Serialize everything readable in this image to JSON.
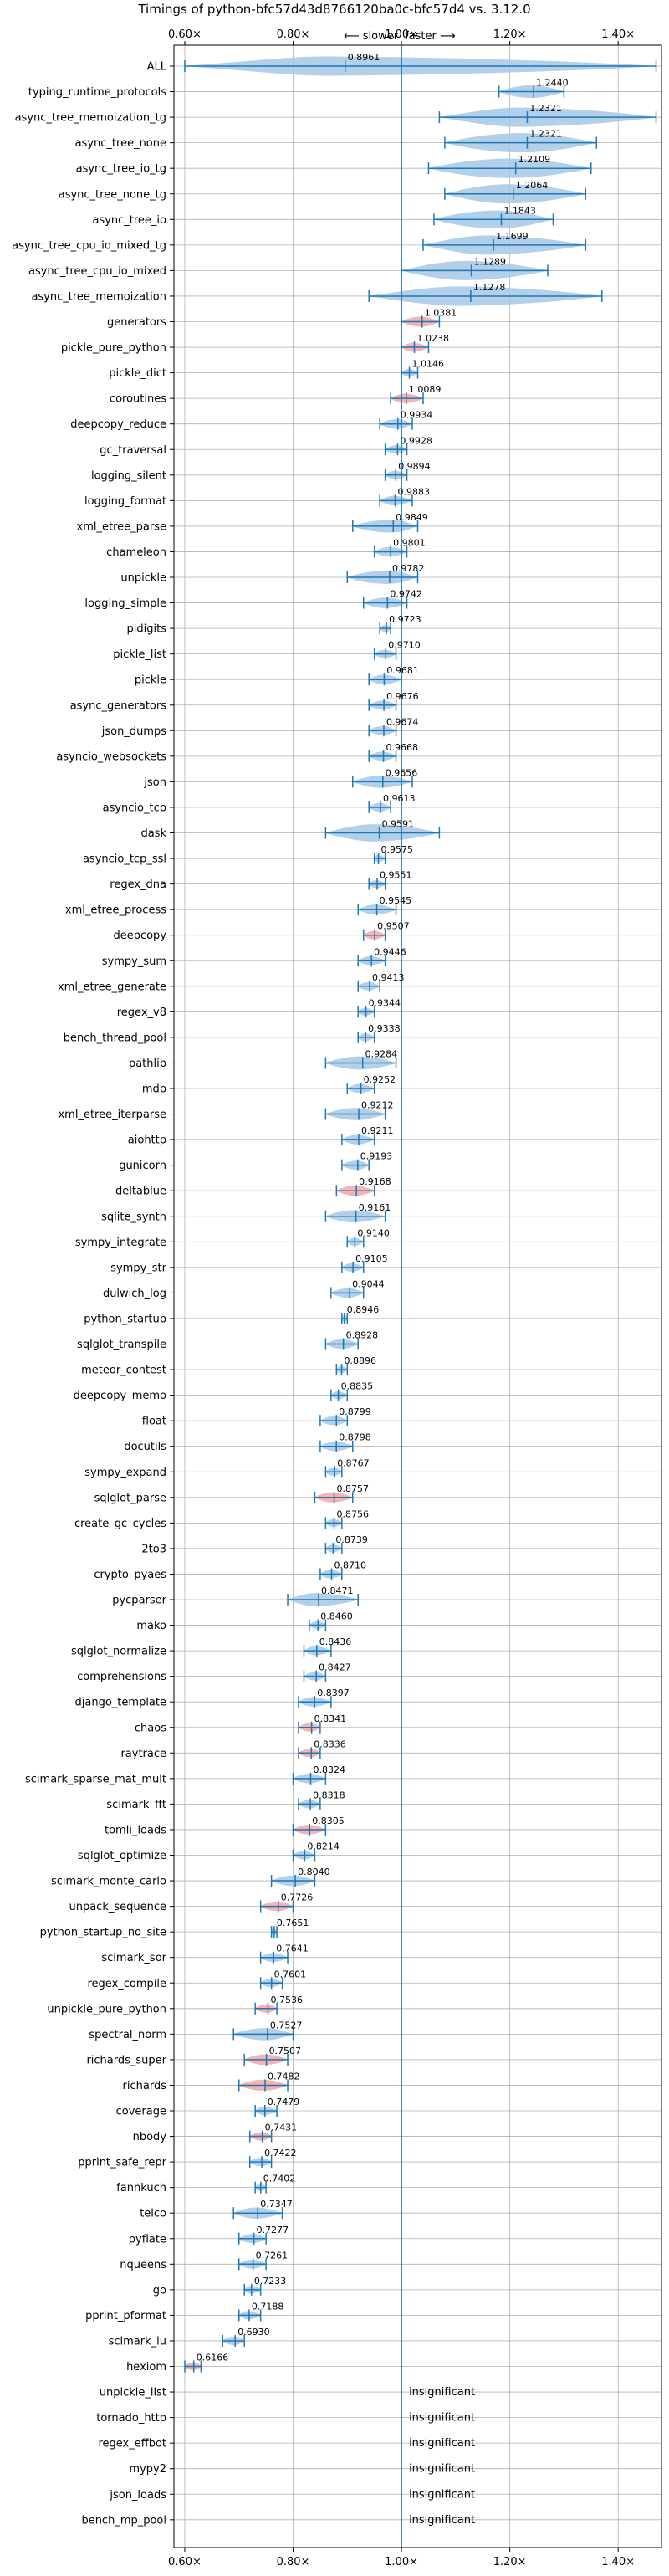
{
  "chart_data": {
    "type": "violin",
    "title": "Timings of python-bfc57d43d8766120ba0c-bfc57d4 vs. 3.12.0",
    "direction_labels": {
      "slower": "⟵ slower",
      "faster": "faster ⟶"
    },
    "xlim": [
      0.58,
      1.48
    ],
    "x_ticks": [
      0.6,
      0.8,
      1.0,
      1.2,
      1.4
    ],
    "x_tick_labels": [
      "0.60×",
      "0.80×",
      "1.00×",
      "1.20×",
      "1.40×"
    ],
    "grid": true,
    "colors": {
      "violin": "#a6c8e6",
      "violin_highlight": "#f4a6a6",
      "bar": "#1f77b4",
      "ref_line": "#1f77b4",
      "grid": "#b0b0b0"
    },
    "insignificant_label": "insignificant",
    "benchmarks": [
      {
        "name": "ALL",
        "mean": 0.8961,
        "min": 0.6,
        "max": 1.47,
        "label": "0.8961"
      },
      {
        "name": "typing_runtime_protocols",
        "mean": 1.244,
        "min": 1.18,
        "max": 1.3,
        "label": "1.2440"
      },
      {
        "name": "async_tree_memoization_tg",
        "mean": 1.2321,
        "min": 1.07,
        "max": 1.47,
        "label": "1.2321"
      },
      {
        "name": "async_tree_none",
        "mean": 1.2321,
        "min": 1.08,
        "max": 1.36,
        "label": "1.2321"
      },
      {
        "name": "async_tree_io_tg",
        "mean": 1.2109,
        "min": 1.05,
        "max": 1.35,
        "label": "1.2109"
      },
      {
        "name": "async_tree_none_tg",
        "mean": 1.2064,
        "min": 1.08,
        "max": 1.34,
        "label": "1.2064"
      },
      {
        "name": "async_tree_io",
        "mean": 1.1843,
        "min": 1.06,
        "max": 1.28,
        "label": "1.1843"
      },
      {
        "name": "async_tree_cpu_io_mixed_tg",
        "mean": 1.1699,
        "min": 1.04,
        "max": 1.34,
        "label": "1.1699"
      },
      {
        "name": "async_tree_cpu_io_mixed",
        "mean": 1.1289,
        "min": 1.0,
        "max": 1.27,
        "label": "1.1289"
      },
      {
        "name": "async_tree_memoization",
        "mean": 1.1278,
        "min": 0.94,
        "max": 1.37,
        "label": "1.1278"
      },
      {
        "name": "generators",
        "mean": 1.0381,
        "min": 1.0,
        "max": 1.07,
        "label": "1.0381",
        "highlight": true
      },
      {
        "name": "pickle_pure_python",
        "mean": 1.0238,
        "min": 1.0,
        "max": 1.05,
        "label": "1.0238",
        "highlight": true
      },
      {
        "name": "pickle_dict",
        "mean": 1.0146,
        "min": 1.0,
        "max": 1.03,
        "label": "1.0146"
      },
      {
        "name": "coroutines",
        "mean": 1.0089,
        "min": 0.98,
        "max": 1.04,
        "label": "1.0089",
        "highlight": true
      },
      {
        "name": "deepcopy_reduce",
        "mean": 0.9934,
        "min": 0.96,
        "max": 1.02,
        "label": "0.9934"
      },
      {
        "name": "gc_traversal",
        "mean": 0.9928,
        "min": 0.97,
        "max": 1.01,
        "label": "0.9928"
      },
      {
        "name": "logging_silent",
        "mean": 0.9894,
        "min": 0.97,
        "max": 1.01,
        "label": "0.9894"
      },
      {
        "name": "logging_format",
        "mean": 0.9883,
        "min": 0.96,
        "max": 1.02,
        "label": "0.9883"
      },
      {
        "name": "xml_etree_parse",
        "mean": 0.9849,
        "min": 0.91,
        "max": 1.03,
        "label": "0.9849"
      },
      {
        "name": "chameleon",
        "mean": 0.9801,
        "min": 0.95,
        "max": 1.01,
        "label": "0.9801"
      },
      {
        "name": "unpickle",
        "mean": 0.9782,
        "min": 0.9,
        "max": 1.03,
        "label": "0.9782"
      },
      {
        "name": "logging_simple",
        "mean": 0.9742,
        "min": 0.93,
        "max": 1.01,
        "label": "0.9742"
      },
      {
        "name": "pidigits",
        "mean": 0.9723,
        "min": 0.96,
        "max": 0.98,
        "label": "0.9723"
      },
      {
        "name": "pickle_list",
        "mean": 0.971,
        "min": 0.95,
        "max": 0.99,
        "label": "0.9710"
      },
      {
        "name": "pickle",
        "mean": 0.9681,
        "min": 0.94,
        "max": 1.0,
        "label": "0.9681"
      },
      {
        "name": "async_generators",
        "mean": 0.9676,
        "min": 0.94,
        "max": 0.99,
        "label": "0.9676"
      },
      {
        "name": "json_dumps",
        "mean": 0.9674,
        "min": 0.94,
        "max": 0.99,
        "label": "0.9674"
      },
      {
        "name": "asyncio_websockets",
        "mean": 0.9668,
        "min": 0.94,
        "max": 0.99,
        "label": "0.9668"
      },
      {
        "name": "json",
        "mean": 0.9656,
        "min": 0.91,
        "max": 1.02,
        "label": "0.9656"
      },
      {
        "name": "asyncio_tcp",
        "mean": 0.9613,
        "min": 0.94,
        "max": 0.98,
        "label": "0.9613"
      },
      {
        "name": "dask",
        "mean": 0.9591,
        "min": 0.86,
        "max": 1.07,
        "label": "0.9591"
      },
      {
        "name": "asyncio_tcp_ssl",
        "mean": 0.9575,
        "min": 0.95,
        "max": 0.97,
        "label": "0.9575"
      },
      {
        "name": "regex_dna",
        "mean": 0.9551,
        "min": 0.94,
        "max": 0.97,
        "label": "0.9551"
      },
      {
        "name": "xml_etree_process",
        "mean": 0.9545,
        "min": 0.92,
        "max": 0.99,
        "label": "0.9545"
      },
      {
        "name": "deepcopy",
        "mean": 0.9507,
        "min": 0.93,
        "max": 0.97,
        "label": "0.9507",
        "highlight": true
      },
      {
        "name": "sympy_sum",
        "mean": 0.9446,
        "min": 0.92,
        "max": 0.97,
        "label": "0.9446"
      },
      {
        "name": "xml_etree_generate",
        "mean": 0.9413,
        "min": 0.92,
        "max": 0.96,
        "label": "0.9413"
      },
      {
        "name": "regex_v8",
        "mean": 0.9344,
        "min": 0.92,
        "max": 0.95,
        "label": "0.9344"
      },
      {
        "name": "bench_thread_pool",
        "mean": 0.9338,
        "min": 0.92,
        "max": 0.95,
        "label": "0.9338"
      },
      {
        "name": "pathlib",
        "mean": 0.9284,
        "min": 0.86,
        "max": 0.99,
        "label": "0.9284"
      },
      {
        "name": "mdp",
        "mean": 0.9252,
        "min": 0.9,
        "max": 0.95,
        "label": "0.9252"
      },
      {
        "name": "xml_etree_iterparse",
        "mean": 0.9212,
        "min": 0.86,
        "max": 0.97,
        "label": "0.9212"
      },
      {
        "name": "aiohttp",
        "mean": 0.9211,
        "min": 0.89,
        "max": 0.95,
        "label": "0.9211"
      },
      {
        "name": "gunicorn",
        "mean": 0.9193,
        "min": 0.89,
        "max": 0.94,
        "label": "0.9193"
      },
      {
        "name": "deltablue",
        "mean": 0.9168,
        "min": 0.88,
        "max": 0.95,
        "label": "0.9168",
        "highlight": true
      },
      {
        "name": "sqlite_synth",
        "mean": 0.9161,
        "min": 0.86,
        "max": 0.97,
        "label": "0.9161"
      },
      {
        "name": "sympy_integrate",
        "mean": 0.914,
        "min": 0.9,
        "max": 0.93,
        "label": "0.9140"
      },
      {
        "name": "sympy_str",
        "mean": 0.9105,
        "min": 0.89,
        "max": 0.93,
        "label": "0.9105"
      },
      {
        "name": "dulwich_log",
        "mean": 0.9044,
        "min": 0.87,
        "max": 0.93,
        "label": "0.9044"
      },
      {
        "name": "python_startup",
        "mean": 0.8946,
        "min": 0.89,
        "max": 0.9,
        "label": "0.8946"
      },
      {
        "name": "sqlglot_transpile",
        "mean": 0.8928,
        "min": 0.86,
        "max": 0.92,
        "label": "0.8928"
      },
      {
        "name": "meteor_contest",
        "mean": 0.8896,
        "min": 0.88,
        "max": 0.9,
        "label": "0.8896"
      },
      {
        "name": "deepcopy_memo",
        "mean": 0.8835,
        "min": 0.87,
        "max": 0.9,
        "label": "0.8835"
      },
      {
        "name": "float",
        "mean": 0.8799,
        "min": 0.85,
        "max": 0.9,
        "label": "0.8799"
      },
      {
        "name": "docutils",
        "mean": 0.8798,
        "min": 0.85,
        "max": 0.91,
        "label": "0.8798"
      },
      {
        "name": "sympy_expand",
        "mean": 0.8767,
        "min": 0.86,
        "max": 0.89,
        "label": "0.8767"
      },
      {
        "name": "sqlglot_parse",
        "mean": 0.8757,
        "min": 0.84,
        "max": 0.91,
        "label": "0.8757",
        "highlight": true
      },
      {
        "name": "create_gc_cycles",
        "mean": 0.8756,
        "min": 0.86,
        "max": 0.89,
        "label": "0.8756"
      },
      {
        "name": "2to3",
        "mean": 0.8739,
        "min": 0.86,
        "max": 0.89,
        "label": "0.8739"
      },
      {
        "name": "crypto_pyaes",
        "mean": 0.871,
        "min": 0.85,
        "max": 0.89,
        "label": "0.8710"
      },
      {
        "name": "pycparser",
        "mean": 0.8471,
        "min": 0.79,
        "max": 0.92,
        "label": "0.8471"
      },
      {
        "name": "mako",
        "mean": 0.846,
        "min": 0.83,
        "max": 0.86,
        "label": "0.8460"
      },
      {
        "name": "sqlglot_normalize",
        "mean": 0.8436,
        "min": 0.82,
        "max": 0.87,
        "label": "0.8436"
      },
      {
        "name": "comprehensions",
        "mean": 0.8427,
        "min": 0.82,
        "max": 0.86,
        "label": "0.8427"
      },
      {
        "name": "django_template",
        "mean": 0.8397,
        "min": 0.81,
        "max": 0.87,
        "label": "0.8397"
      },
      {
        "name": "chaos",
        "mean": 0.8341,
        "min": 0.81,
        "max": 0.85,
        "label": "0.8341",
        "highlight": true
      },
      {
        "name": "raytrace",
        "mean": 0.8336,
        "min": 0.81,
        "max": 0.85,
        "label": "0.8336",
        "highlight": true
      },
      {
        "name": "scimark_sparse_mat_mult",
        "mean": 0.8324,
        "min": 0.8,
        "max": 0.86,
        "label": "0.8324"
      },
      {
        "name": "scimark_fft",
        "mean": 0.8318,
        "min": 0.81,
        "max": 0.85,
        "label": "0.8318"
      },
      {
        "name": "tomli_loads",
        "mean": 0.8305,
        "min": 0.8,
        "max": 0.86,
        "label": "0.8305",
        "highlight": true
      },
      {
        "name": "sqlglot_optimize",
        "mean": 0.8214,
        "min": 0.8,
        "max": 0.84,
        "label": "0.8214"
      },
      {
        "name": "scimark_monte_carlo",
        "mean": 0.804,
        "min": 0.76,
        "max": 0.84,
        "label": "0.8040"
      },
      {
        "name": "unpack_sequence",
        "mean": 0.7726,
        "min": 0.74,
        "max": 0.8,
        "label": "0.7726",
        "highlight": true
      },
      {
        "name": "python_startup_no_site",
        "mean": 0.7651,
        "min": 0.76,
        "max": 0.77,
        "label": "0.7651"
      },
      {
        "name": "scimark_sor",
        "mean": 0.7641,
        "min": 0.74,
        "max": 0.79,
        "label": "0.7641"
      },
      {
        "name": "regex_compile",
        "mean": 0.7601,
        "min": 0.74,
        "max": 0.78,
        "label": "0.7601"
      },
      {
        "name": "unpickle_pure_python",
        "mean": 0.7536,
        "min": 0.73,
        "max": 0.77,
        "label": "0.7536",
        "highlight": true
      },
      {
        "name": "spectral_norm",
        "mean": 0.7527,
        "min": 0.69,
        "max": 0.8,
        "label": "0.7527"
      },
      {
        "name": "richards_super",
        "mean": 0.7507,
        "min": 0.71,
        "max": 0.79,
        "label": "0.7507",
        "highlight": true
      },
      {
        "name": "richards",
        "mean": 0.7482,
        "min": 0.7,
        "max": 0.79,
        "label": "0.7482",
        "highlight": true
      },
      {
        "name": "coverage",
        "mean": 0.7479,
        "min": 0.73,
        "max": 0.77,
        "label": "0.7479"
      },
      {
        "name": "nbody",
        "mean": 0.7431,
        "min": 0.72,
        "max": 0.76,
        "label": "0.7431",
        "highlight": true
      },
      {
        "name": "pprint_safe_repr",
        "mean": 0.7422,
        "min": 0.72,
        "max": 0.76,
        "label": "0.7422"
      },
      {
        "name": "fannkuch",
        "mean": 0.7402,
        "min": 0.73,
        "max": 0.75,
        "label": "0.7402"
      },
      {
        "name": "telco",
        "mean": 0.7347,
        "min": 0.69,
        "max": 0.78,
        "label": "0.7347"
      },
      {
        "name": "pyflate",
        "mean": 0.7277,
        "min": 0.7,
        "max": 0.75,
        "label": "0.7277"
      },
      {
        "name": "nqueens",
        "mean": 0.7261,
        "min": 0.7,
        "max": 0.75,
        "label": "0.7261"
      },
      {
        "name": "go",
        "mean": 0.7233,
        "min": 0.71,
        "max": 0.74,
        "label": "0.7233"
      },
      {
        "name": "pprint_pformat",
        "mean": 0.7188,
        "min": 0.7,
        "max": 0.74,
        "label": "0.7188"
      },
      {
        "name": "scimark_lu",
        "mean": 0.693,
        "min": 0.67,
        "max": 0.71,
        "label": "0.6930"
      },
      {
        "name": "hexiom",
        "mean": 0.6166,
        "min": 0.6,
        "max": 0.63,
        "label": "0.6166",
        "highlight": true
      },
      {
        "name": "unpickle_list",
        "insignificant": true
      },
      {
        "name": "tornado_http",
        "insignificant": true
      },
      {
        "name": "regex_effbot",
        "insignificant": true
      },
      {
        "name": "mypy2",
        "insignificant": true
      },
      {
        "name": "json_loads",
        "insignificant": true
      },
      {
        "name": "bench_mp_pool",
        "insignificant": true
      }
    ]
  }
}
